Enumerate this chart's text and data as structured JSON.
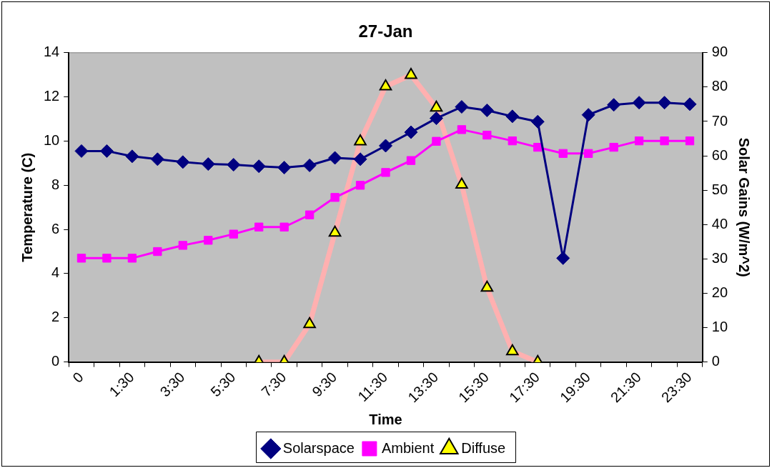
{
  "chart_data": {
    "type": "line",
    "title": "27-Jan",
    "xlabel": "Time",
    "ylabel": "Temperature (C)",
    "y2label": "Solar Gains (W/m^2)",
    "categories": [
      "0",
      null,
      "1:30",
      null,
      "3:30",
      null,
      "5:30",
      null,
      "7:30",
      null,
      "9:30",
      null,
      "11:30",
      null,
      "13:30",
      null,
      "15:30",
      null,
      "17:30",
      null,
      "19:30",
      null,
      "21:30",
      null,
      "23:30"
    ],
    "series": [
      {
        "name": "Solarspace",
        "color": "#000080",
        "marker": "diamond",
        "values": [
          9.55,
          9.55,
          9.31,
          9.18,
          9.05,
          8.96,
          8.93,
          8.86,
          8.8,
          8.9,
          9.24,
          9.18,
          9.79,
          10.4,
          11.03,
          11.55,
          11.39,
          11.12,
          10.88,
          4.7,
          11.19,
          11.64,
          11.74,
          11.74,
          11.67
        ]
      },
      {
        "name": "Ambient",
        "color": "#ff00ff",
        "marker": "square",
        "values": [
          4.7,
          4.7,
          4.7,
          5.0,
          5.28,
          5.51,
          5.79,
          6.11,
          6.11,
          6.66,
          7.45,
          8.0,
          8.58,
          9.12,
          9.99,
          10.52,
          10.27,
          10.01,
          9.72,
          9.44,
          9.44,
          9.72,
          10.01,
          10.01,
          10.01
        ]
      },
      {
        "name": "Diffuse",
        "color": "#ffb0b0",
        "marker": "triangle",
        "axis": "y2",
        "values": [
          null,
          null,
          null,
          null,
          null,
          null,
          null,
          0,
          0,
          11,
          37.6,
          64.2,
          80.2,
          83.5,
          74,
          51.6,
          21.6,
          3.1,
          0,
          null,
          null,
          null,
          null,
          null,
          null
        ]
      }
    ],
    "ylim": [
      0,
      14
    ],
    "yticks": [
      0,
      2,
      4,
      6,
      8,
      10,
      12,
      14
    ],
    "y2lim": [
      0,
      90
    ],
    "y2ticks": [
      0,
      10,
      20,
      30,
      40,
      50,
      60,
      70,
      80,
      90
    ],
    "grid": false,
    "legend": "bottom"
  }
}
